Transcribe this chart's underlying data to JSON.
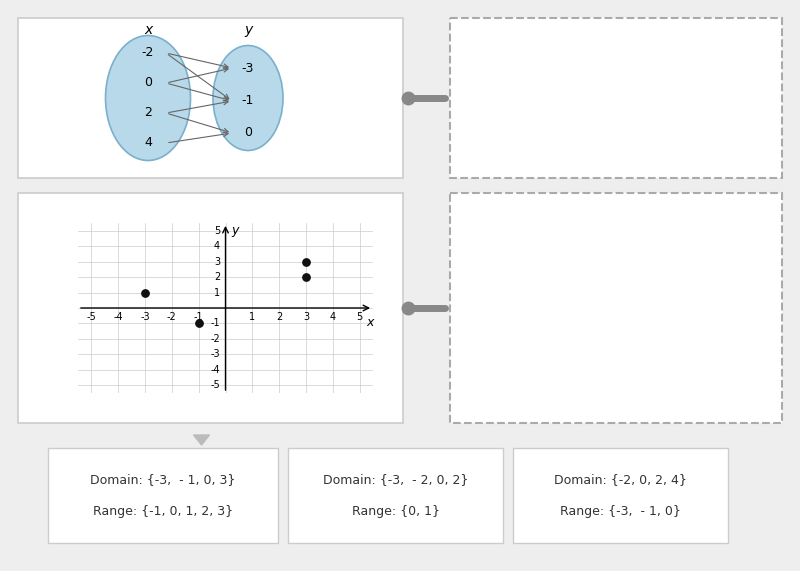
{
  "bg_color": "#eeeeee",
  "panel_bg": "#ffffff",
  "ellipse_fill": "#b8d9ea",
  "ellipse_edge": "#7ab0cc",
  "drag_color": "#888888",
  "dashed_edge": "#aaaaaa",
  "grid_color": "#cccccc",
  "arrow_color": "#666666",
  "dot_color": "#111111",
  "ans_edge": "#cccccc",
  "ans_text": "#333333",
  "mapping_x_vals": [
    "-2",
    "0",
    "2",
    "4"
  ],
  "mapping_y_vals": [
    "-3",
    "-1",
    "0"
  ],
  "arrows": [
    [
      0,
      0
    ],
    [
      0,
      1
    ],
    [
      1,
      0
    ],
    [
      1,
      1
    ],
    [
      2,
      1
    ],
    [
      2,
      2
    ],
    [
      3,
      2
    ]
  ],
  "scatter_points": [
    [
      -3,
      1
    ],
    [
      -1,
      -1
    ],
    [
      3,
      3
    ],
    [
      3,
      2
    ]
  ],
  "answer_boxes": [
    {
      "domain": "Domain: {-3,  - 1, 0, 3}",
      "range": "Range: {-1, 0, 1, 2, 3}"
    },
    {
      "domain": "Domain: {-3,  - 2, 0, 2}",
      "range": "Range: {0, 1}"
    },
    {
      "domain": "Domain: {-2, 0, 2, 4}",
      "range": "Range: {-3,  - 1, 0}"
    }
  ]
}
